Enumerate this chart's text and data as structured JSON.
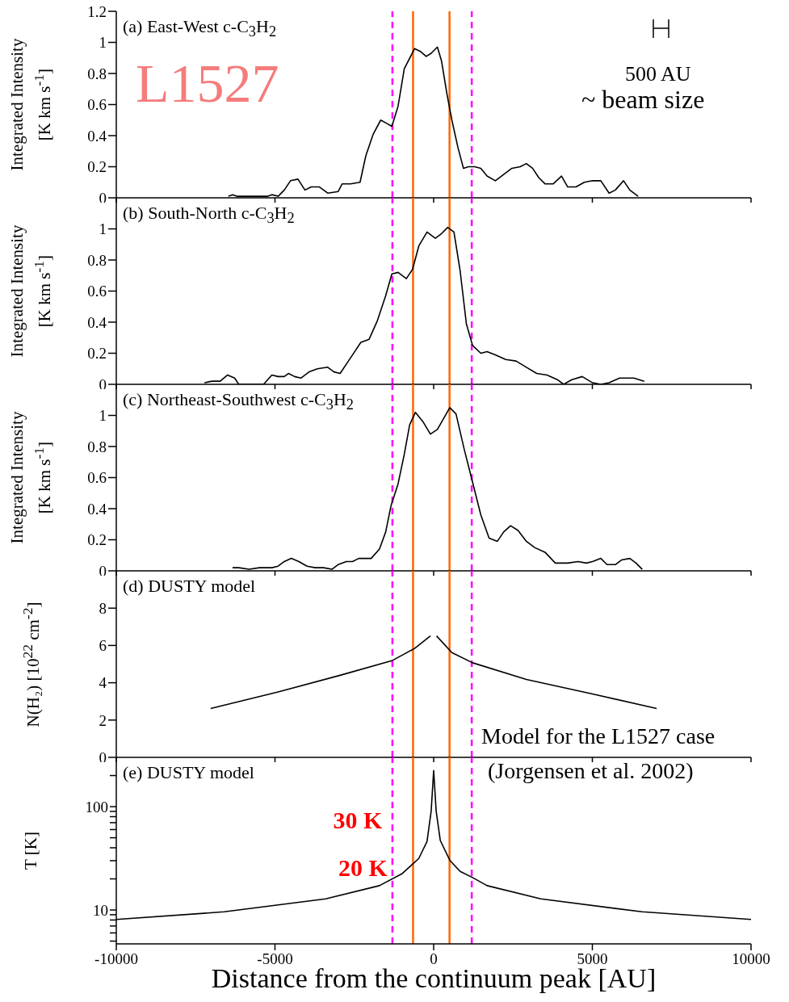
{
  "chart_data": [
    {
      "type": "line",
      "title": "(a) East-West  c-C$_{3}$H$_{2}$",
      "ylabel": "Integrated Intensity [K km s$^{-1}$]",
      "color": "#000000",
      "tick_labels": "y",
      "x": [
        -6467,
        -6336,
        -6200,
        -5228,
        -5100,
        -4900,
        -4707,
        -4511,
        -4276,
        -4055,
        -3860,
        -3600,
        -3338,
        -3012,
        -2882,
        -2621,
        -2320,
        -2138,
        -1904,
        -1669,
        -1486,
        -1317,
        -1121,
        -926,
        -600,
        -404,
        -235,
        -78,
        117,
        248,
        417,
        574,
        769,
        939,
        1095,
        1291,
        1486,
        1682,
        1943,
        2204,
        2464,
        2725,
        2920,
        3116,
        3312,
        3507,
        3768,
        4029,
        4224,
        4485,
        4746,
        5006,
        5267,
        5528,
        5724,
        5984,
        6180,
        6441
      ],
      "values": [
        0.01,
        0.02,
        0.01,
        0.01,
        0.02,
        0.01,
        0.05,
        0.11,
        0.12,
        0.05,
        0.07,
        0.07,
        0.03,
        0.04,
        0.09,
        0.09,
        0.1,
        0.27,
        0.41,
        0.5,
        0.48,
        0.46,
        0.59,
        0.83,
        0.96,
        0.94,
        0.91,
        0.93,
        0.97,
        0.88,
        0.67,
        0.5,
        0.32,
        0.19,
        0.2,
        0.2,
        0.19,
        0.14,
        0.11,
        0.15,
        0.19,
        0.2,
        0.22,
        0.19,
        0.13,
        0.09,
        0.09,
        0.14,
        0.07,
        0.07,
        0.1,
        0.11,
        0.11,
        0.03,
        0.05,
        0.11,
        0.05,
        0.01
      ],
      "xlim": [
        -10000,
        10000
      ],
      "xticks": [
        -10000,
        -5000,
        0,
        5000,
        10000
      ],
      "ylim": [
        0,
        1.2
      ],
      "yticks": [
        0,
        0.2,
        0.4,
        0.6,
        0.8,
        1,
        1.2
      ],
      "ref_lines": [
        {
          "axis": "x",
          "value": -1300,
          "color": "#ff00ff",
          "line_style": "dashed"
        },
        {
          "axis": "x",
          "value": 1200,
          "color": "#ff00ff",
          "line_style": "dashed"
        },
        {
          "axis": "x",
          "value": -650,
          "color": "#ff6600",
          "line_style": "solid"
        },
        {
          "axis": "x",
          "value": 500,
          "color": "#ff6600",
          "line_style": "solid"
        }
      ],
      "annotations": [
        "L1527",
        "500 AU",
        "~ beam size"
      ]
    },
    {
      "type": "line",
      "title": "(b) South-North  c-C$_{3}$H$_{2}$",
      "ylabel": "Integrated Intensity [K km s$^{-1}$]",
      "color": "#000000",
      "tick_labels": "y",
      "x": [
        -7223,
        -6988,
        -6728,
        -6493,
        -6271,
        -6141,
        -5359,
        -5099,
        -4902,
        -4707,
        -4576,
        -4381,
        -4185,
        -3924,
        -3664,
        -3338,
        -3142,
        -2947,
        -2686,
        -2490,
        -2295,
        -2034,
        -1773,
        -1512,
        -1317,
        -1121,
        -861,
        -665,
        -469,
        -209,
        52,
        248,
        443,
        639,
        834,
        1030,
        1226,
        1486,
        1682,
        1943,
        2269,
        2595,
        2920,
        3246,
        3572,
        3898,
        4094,
        4355,
        4680,
        5006,
        5267,
        5528,
        5854,
        6310,
        6636
      ],
      "values": [
        0.01,
        0.02,
        0.02,
        0.06,
        0.04,
        0,
        0,
        0.06,
        0.05,
        0.05,
        0.07,
        0.05,
        0.04,
        0.08,
        0.1,
        0.11,
        0.08,
        0.07,
        0.15,
        0.21,
        0.27,
        0.29,
        0.41,
        0.57,
        0.71,
        0.72,
        0.68,
        0.74,
        0.89,
        0.98,
        0.94,
        0.97,
        1.01,
        0.98,
        0.73,
        0.39,
        0.25,
        0.2,
        0.21,
        0.19,
        0.16,
        0.15,
        0.11,
        0.07,
        0.06,
        0.03,
        0,
        0.03,
        0.05,
        0.01,
        0,
        0.01,
        0.04,
        0.04,
        0.02
      ],
      "xlim": [
        -10000,
        10000
      ],
      "xticks": [
        -10000,
        -5000,
        0,
        5000,
        10000
      ],
      "ylim": [
        0,
        1.2
      ],
      "yticks": [
        0,
        0.2,
        0.4,
        0.6,
        0.8,
        1
      ],
      "ref_lines": [
        {
          "axis": "x",
          "value": -1300,
          "color": "#ff00ff",
          "line_style": "dashed"
        },
        {
          "axis": "x",
          "value": 1200,
          "color": "#ff00ff",
          "line_style": "dashed"
        },
        {
          "axis": "x",
          "value": -650,
          "color": "#ff6600",
          "line_style": "solid"
        },
        {
          "axis": "x",
          "value": 500,
          "color": "#ff6600",
          "line_style": "solid"
        }
      ]
    },
    {
      "type": "line",
      "title": "(c) Northeast-Southwest  c-C$_{3}$H$_{2}$",
      "ylabel": "Integrated Intensity [K km s$^{-1}$]",
      "color": "#000000",
      "tick_labels": "y",
      "x": [
        -6336,
        -6141,
        -5815,
        -5489,
        -5098,
        -4902,
        -4707,
        -4485,
        -4250,
        -3990,
        -3729,
        -3468,
        -3208,
        -3012,
        -2751,
        -2555,
        -2360,
        -1969,
        -1708,
        -1512,
        -1343,
        -1121,
        -926,
        -756,
        -574,
        -339,
        -104,
        117,
        313,
        508,
        704,
        965,
        1226,
        1486,
        1747,
        2008,
        2204,
        2425,
        2660,
        2920,
        3181,
        3507,
        3833,
        4224,
        4550,
        4811,
        5006,
        5267,
        5463,
        5724,
        5919,
        6180,
        6375,
        6571
      ],
      "values": [
        0.02,
        0.02,
        0.01,
        0.02,
        0.02,
        0.03,
        0.06,
        0.08,
        0.06,
        0.03,
        0.02,
        0.02,
        0.01,
        0.04,
        0.06,
        0.06,
        0.08,
        0.08,
        0.14,
        0.25,
        0.42,
        0.56,
        0.75,
        0.94,
        1.02,
        0.96,
        0.88,
        0.91,
        0.98,
        1.05,
        1.01,
        0.78,
        0.57,
        0.36,
        0.21,
        0.19,
        0.25,
        0.29,
        0.26,
        0.19,
        0.15,
        0.12,
        0.05,
        0.05,
        0.06,
        0.05,
        0.06,
        0.08,
        0.04,
        0.04,
        0.07,
        0.08,
        0.05,
        0.01
      ],
      "xlim": [
        -10000,
        10000
      ],
      "xticks": [
        -10000,
        -5000,
        0,
        5000,
        10000
      ],
      "ylim": [
        0,
        1.2
      ],
      "yticks": [
        0,
        0.2,
        0.4,
        0.6,
        0.8,
        1
      ],
      "ref_lines": [
        {
          "axis": "x",
          "value": -1300,
          "color": "#ff00ff",
          "line_style": "dashed"
        },
        {
          "axis": "x",
          "value": 1200,
          "color": "#ff00ff",
          "line_style": "dashed"
        },
        {
          "axis": "x",
          "value": -650,
          "color": "#ff6600",
          "line_style": "solid"
        },
        {
          "axis": "x",
          "value": 500,
          "color": "#ff6600",
          "line_style": "solid"
        }
      ]
    },
    {
      "type": "line",
      "title": "(d) DUSTY model",
      "ylabel": "N(H₂) [10$^{22}$ cm$^{-2}$]",
      "color": "#000000",
      "tick_labels": "y",
      "x": [
        -7027,
        -4902,
        -2947,
        -1317,
        -600,
        -104,
        0,
        91,
        574,
        1226,
        2920,
        5006,
        7027
      ],
      "values": [
        2.62,
        3.51,
        4.4,
        5.18,
        5.84,
        6.51,
        null,
        6.51,
        5.62,
        5.07,
        4.18,
        3.4,
        2.62
      ],
      "xlim": [
        -10000,
        10000
      ],
      "xticks": [
        -10000,
        -5000,
        0,
        5000,
        10000
      ],
      "ylim": [
        0,
        10
      ],
      "yticks": [
        0,
        2,
        4,
        6,
        8
      ],
      "ref_lines": [
        {
          "axis": "x",
          "value": -1300,
          "color": "#ff00ff",
          "line_style": "dashed"
        },
        {
          "axis": "x",
          "value": 1200,
          "color": "#ff00ff",
          "line_style": "dashed"
        },
        {
          "axis": "x",
          "value": -650,
          "color": "#ff6600",
          "line_style": "solid"
        },
        {
          "axis": "x",
          "value": 500,
          "color": "#ff6600",
          "line_style": "solid"
        }
      ],
      "annotations": [
        "Model for the L1527 case"
      ]
    },
    {
      "type": "line",
      "title": "(e) DUSTY model",
      "ylabel": "T [K]",
      "xlabel": "Distance from the continuum peak [AU]",
      "color": "#000000",
      "log": "y",
      "x": [
        -10000,
        -6597,
        -3403,
        -1708,
        -991,
        -469,
        -209,
        -78,
        0,
        78,
        209,
        508,
        834,
        1226,
        1682,
        3377,
        6571,
        10000
      ],
      "values": [
        8.1,
        9.6,
        12.8,
        17.2,
        22.5,
        31.5,
        46,
        91,
        224,
        91,
        47,
        30.3,
        23.6,
        20.6,
        17.2,
        12.8,
        9.6,
        8.1
      ],
      "xlim": [
        -10000,
        10000
      ],
      "xticks": [
        -10000,
        -5000,
        0,
        5000,
        10000
      ],
      "ylim": [
        4.7,
        300
      ],
      "yticks": [
        {
          "value": 5,
          "label": null
        },
        {
          "value": 6,
          "label": null
        },
        {
          "value": 7,
          "label": null
        },
        {
          "value": 8,
          "label": null
        },
        {
          "value": 9,
          "label": null
        },
        10,
        {
          "value": 20,
          "label": null
        },
        {
          "value": 30,
          "label": null
        },
        {
          "value": 40,
          "label": null
        },
        {
          "value": 50,
          "label": null
        },
        {
          "value": 60,
          "label": null
        },
        {
          "value": 70,
          "label": null
        },
        {
          "value": 80,
          "label": null
        },
        {
          "value": 90,
          "label": null
        },
        100,
        {
          "value": 200,
          "label": null
        }
      ],
      "ref_lines": [
        {
          "axis": "x",
          "value": -1300,
          "color": "#ff00ff",
          "line_style": "dashed"
        },
        {
          "axis": "x",
          "value": 1200,
          "color": "#ff00ff",
          "line_style": "dashed"
        },
        {
          "axis": "x",
          "value": -650,
          "color": "#ff6600",
          "line_style": "solid"
        },
        {
          "axis": "x",
          "value": 500,
          "color": "#ff6600",
          "line_style": "solid"
        }
      ],
      "annotations": [
        "(Jorgensen et al. 2002)",
        {
          "text": "30 K",
          "x": -650,
          "y": 30
        },
        {
          "text": "20 K",
          "x": -1300,
          "y": 20
        }
      ]
    }
  ]
}
